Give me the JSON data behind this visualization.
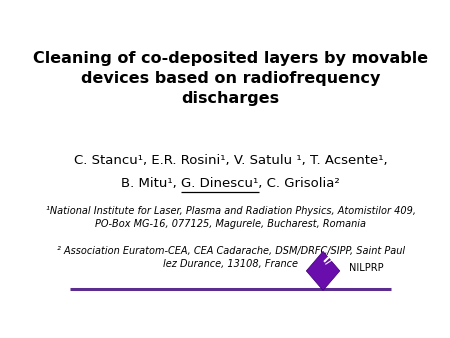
{
  "title": "Cleaning of co-deposited layers by movable\ndevices based on radiofrequency\ndischarges",
  "authors_line1": "C. Stancu¹, E.R. Rosini¹, V. Satulu ¹, T. Acsente¹,",
  "authors_line2": "B. Mitu¹, G. Dinescu¹, C. Grisolia²",
  "authors_line2_pre": "B. Mitu¹, ",
  "authors_line2_underlined": "G. Dinescu¹",
  "authors_line2_post": ", C. Grisolia²",
  "affil1": "¹National Institute for Laser, Plasma and Radiation Physics, Atomistilor 409,\nPO-Box MG-16, 077125, Magurele, Bucharest, Romania",
  "affil2": "² Association Euratom-CEA, CEA Cadarache, DSM/DRFC/SIPP, Saint Paul\nlez Durance, 13108, France",
  "logo_text": "NILPRP",
  "background_color": "#ffffff",
  "title_color": "#000000",
  "author_color": "#000000",
  "affil_color": "#000000",
  "line_color": "#5b2d8e",
  "diamond_color": "#6a0dad",
  "title_fontsize": 11.5,
  "author_fontsize": 9.5,
  "affil_fontsize": 7.0
}
